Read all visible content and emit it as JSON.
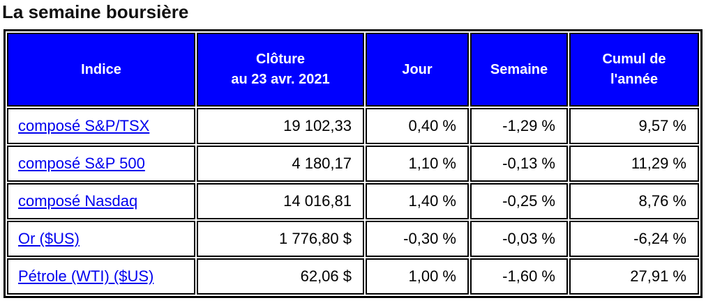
{
  "page": {
    "title": "La semaine boursière"
  },
  "table": {
    "headers": {
      "indice": "Indice",
      "cloture": "Clôture\nau 23 avr. 2021",
      "jour": "Jour",
      "semaine": "Semaine",
      "cumul": "Cumul de\nl'année"
    },
    "rows": [
      {
        "indice": "composé S&P/TSX",
        "cloture": "19 102,33",
        "jour": "0,40 %",
        "semaine": "-1,29 %",
        "cumul": "9,57 %"
      },
      {
        "indice": "composé S&P 500",
        "cloture": "4 180,17",
        "jour": "1,10 %",
        "semaine": "-0,13 %",
        "cumul": "11,29 %"
      },
      {
        "indice": "composé Nasdaq",
        "cloture": "14 016,81",
        "jour": "1,40 %",
        "semaine": "-0,25 %",
        "cumul": "8,76 %"
      },
      {
        "indice": "Or ($US)",
        "cloture": "1 776,80 $",
        "jour": "-0,30 %",
        "semaine": "-0,03 %",
        "cumul": "-6,24 %"
      },
      {
        "indice": "Pétrole (WTI) ($US)",
        "cloture": "62,06 $",
        "jour": "1,00 %",
        "semaine": "-1,60 %",
        "cumul": "27,91 %"
      }
    ],
    "colors": {
      "header_bg": "#0000FF",
      "header_text": "#FFFFFF",
      "link": "#0000EE",
      "border": "#000000"
    }
  }
}
